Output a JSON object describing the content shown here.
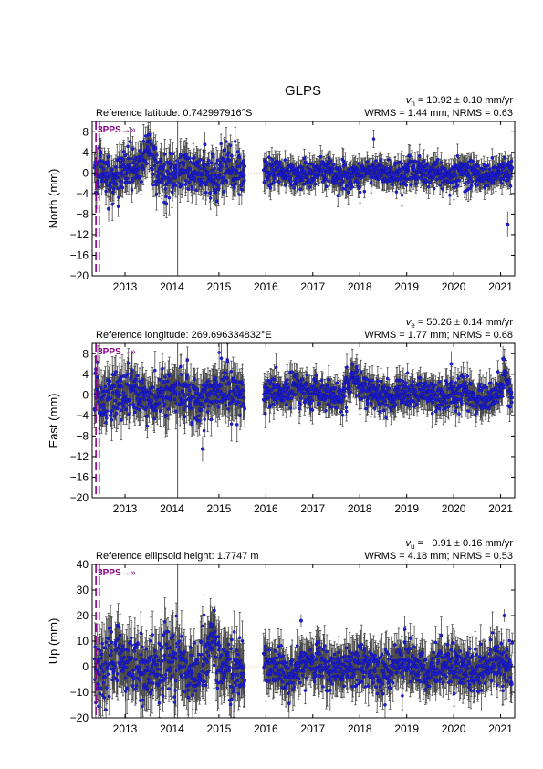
{
  "figure": {
    "title": "GLPS"
  },
  "colors": {
    "points": "#1f1fd6",
    "point_edge": "#0a0a8a",
    "errorbars": "#4a4a4a",
    "event_markers": "#8b008b",
    "zero_line": "#e8c8a0",
    "vertical_line": "#555555"
  },
  "chart_data": [
    {
      "type": "scatter",
      "component": "north",
      "ylabel": "North (mm)",
      "reference_text": "Reference latitude: 0.742997916°S",
      "velocity_prefix": "v",
      "velocity_sub": "n",
      "velocity_text": " = 10.92 ± 0.10 mm/yr",
      "stats_text": "WRMS = 1.44 mm; NRMS = 0.63",
      "ylim": [
        -20,
        10
      ],
      "yticks": [
        -20,
        -16,
        -12,
        -8,
        -4,
        0,
        4,
        8
      ],
      "ytick_labels": [
        "−20",
        "−16",
        "−12",
        "−8",
        "−4",
        "0",
        "4",
        "8"
      ],
      "xlim": [
        2012.3,
        2021.3
      ],
      "xticks": [
        2013,
        2014,
        2015,
        2016,
        2017,
        2018,
        2019,
        2020,
        2021
      ],
      "xtick_labels": [
        "2013",
        "2014",
        "2015",
        "2016",
        "2017",
        "2018",
        "2019",
        "2020",
        "2021"
      ],
      "grid": false,
      "segments": [
        {
          "start": 2012.35,
          "end": 2015.55,
          "noise": 2.0,
          "err": 2.2
        },
        {
          "start": 2015.95,
          "end": 2021.25,
          "noise": 1.3,
          "err": 1.6
        }
      ],
      "bumps": [
        {
          "x": 2013.5,
          "width": 0.12,
          "amp": 4.5
        }
      ],
      "outliers": [
        {
          "x": 2021.15,
          "y": -10.0
        },
        {
          "x": 2014.7,
          "y": 5.5
        },
        {
          "x": 2012.65,
          "y": -7.0
        }
      ],
      "events": [
        2012.38,
        2012.45
      ],
      "event_labels": [
        "3PPS",
        "→»"
      ],
      "vertical_line": 2014.12
    },
    {
      "type": "scatter",
      "component": "east",
      "ylabel": "East (mm)",
      "reference_text": "Reference longitude: 269.696334832°E",
      "velocity_prefix": "v",
      "velocity_sub": "e",
      "velocity_text": " = 50.26 ± 0.14 mm/yr",
      "stats_text": "WRMS = 1.77 mm; NRMS = 0.68",
      "ylim": [
        -20,
        10
      ],
      "yticks": [
        -20,
        -16,
        -12,
        -8,
        -4,
        0,
        4,
        8
      ],
      "ytick_labels": [
        "−20",
        "−16",
        "−12",
        "−8",
        "−4",
        "0",
        "4",
        "8"
      ],
      "xlim": [
        2012.3,
        2021.3
      ],
      "xticks": [
        2013,
        2014,
        2015,
        2016,
        2017,
        2018,
        2019,
        2020,
        2021
      ],
      "xtick_labels": [
        "2013",
        "2014",
        "2015",
        "2016",
        "2017",
        "2018",
        "2019",
        "2020",
        "2021"
      ],
      "grid": false,
      "segments": [
        {
          "start": 2012.35,
          "end": 2015.55,
          "noise": 2.3,
          "err": 2.8
        },
        {
          "start": 2015.95,
          "end": 2021.25,
          "noise": 1.5,
          "err": 2.0
        }
      ],
      "bumps": [
        {
          "x": 2016.6,
          "width": 0.15,
          "amp": 2.5
        },
        {
          "x": 2017.85,
          "width": 0.2,
          "amp": 3.0
        },
        {
          "x": 2021.1,
          "width": 0.06,
          "amp": 4.0
        }
      ],
      "outliers": [
        {
          "x": 2014.65,
          "y": -10.5
        },
        {
          "x": 2019.95,
          "y": 6.0
        },
        {
          "x": 2021.05,
          "y": 7.0
        }
      ],
      "events": [
        2012.38,
        2012.45
      ],
      "event_labels": [
        "3PPS",
        "→»"
      ],
      "vertical_line": 2014.12
    },
    {
      "type": "scatter",
      "component": "up",
      "ylabel": "Up (mm)",
      "reference_text": "Reference ellipsoid height: 1.7747 m",
      "velocity_prefix": "v",
      "velocity_sub": "u",
      "velocity_text": " = −0.91 ± 0.16 mm/yr",
      "stats_text": "WRMS = 4.18 mm; NRMS = 0.53",
      "ylim": [
        -20,
        40
      ],
      "yticks": [
        -20,
        -10,
        0,
        10,
        20,
        30,
        40
      ],
      "ytick_labels": [
        "−20",
        "−10",
        "0",
        "10",
        "20",
        "30",
        "40"
      ],
      "xlim": [
        2012.3,
        2021.3
      ],
      "xticks": [
        2013,
        2014,
        2015,
        2016,
        2017,
        2018,
        2019,
        2020,
        2021
      ],
      "xtick_labels": [
        "2013",
        "2014",
        "2015",
        "2016",
        "2017",
        "2018",
        "2019",
        "2020",
        "2021"
      ],
      "grid": false,
      "segments": [
        {
          "start": 2012.35,
          "end": 2015.55,
          "noise": 6.0,
          "err": 7.0
        },
        {
          "start": 2015.95,
          "end": 2021.25,
          "noise": 4.2,
          "err": 5.5
        }
      ],
      "bumps": [
        {
          "x": 2014.85,
          "width": 0.1,
          "amp": 10.0
        },
        {
          "x": 2012.7,
          "width": 0.1,
          "amp": 5.0
        }
      ],
      "outliers": [
        {
          "x": 2014.9,
          "y": 22.0
        },
        {
          "x": 2021.08,
          "y": 20.0
        },
        {
          "x": 2016.75,
          "y": 18.0
        }
      ],
      "events": [
        2012.38,
        2012.45
      ],
      "event_labels": [
        "3PPS",
        "→»"
      ],
      "vertical_line": 2014.12
    }
  ]
}
